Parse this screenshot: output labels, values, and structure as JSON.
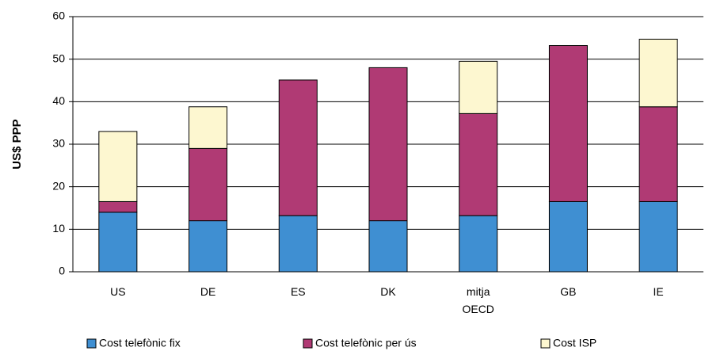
{
  "chart_data": {
    "type": "stacked_bar",
    "ylabel": "US$ PPP",
    "categories": [
      "US",
      "DE",
      "ES",
      "DK",
      "mitja OECD",
      "GB",
      "IE"
    ],
    "series": [
      {
        "name": "Cost telefònic fix",
        "color": "#3f8fd2",
        "values": [
          14,
          12,
          13.2,
          12,
          13.2,
          16.5,
          16.5
        ]
      },
      {
        "name": "Cost telefònic per ús",
        "color": "#b03a74",
        "values": [
          2.5,
          17,
          31.9,
          36,
          24,
          36.7,
          22.3
        ]
      },
      {
        "name": "Cost ISP",
        "color": "#fdf7d0",
        "values": [
          16.5,
          9.8,
          0,
          0,
          12.3,
          0,
          15.9
        ]
      }
    ],
    "ylim": [
      0,
      60
    ],
    "yticks": [
      0,
      10,
      20,
      30,
      40,
      50,
      60
    ],
    "grid": true
  }
}
